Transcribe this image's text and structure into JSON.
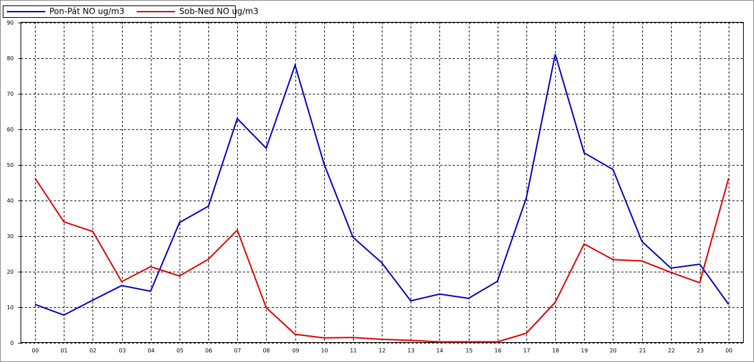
{
  "chart_data": {
    "type": "line",
    "categories": [
      "00",
      "01",
      "02",
      "03",
      "04",
      "05",
      "06",
      "07",
      "08",
      "09",
      "10",
      "11",
      "12",
      "13",
      "14",
      "15",
      "16",
      "17",
      "18",
      "19",
      "20",
      "21",
      "22",
      "23",
      "00"
    ],
    "series": [
      {
        "name": "Pon-Pát NO ug/m3",
        "color": "#0000c0",
        "values": [
          10.7,
          7.7,
          11.9,
          16.0,
          14.4,
          33.7,
          38.3,
          62.9,
          54.6,
          77.9,
          50.2,
          29.6,
          22.4,
          11.7,
          13.6,
          12.4,
          17.2,
          40.6,
          81.0,
          53.3,
          48.6,
          28.4,
          20.9,
          22.0,
          10.7
        ]
      },
      {
        "name": "Sob-Ned NO ug/m3",
        "color": "#e00000",
        "values": [
          46.2,
          33.9,
          31.2,
          17.1,
          21.3,
          18.7,
          23.4,
          31.6,
          9.8,
          2.3,
          1.3,
          1.4,
          0.9,
          0.6,
          0.2,
          0.2,
          0.2,
          2.6,
          11.3,
          27.7,
          23.3,
          22.9,
          19.7,
          16.8,
          46.2
        ]
      }
    ],
    "ylim": [
      0,
      90
    ],
    "yticks": [
      0,
      10,
      20,
      30,
      40,
      50,
      60,
      70,
      80,
      90
    ],
    "grid": true,
    "legend": "top-left"
  }
}
